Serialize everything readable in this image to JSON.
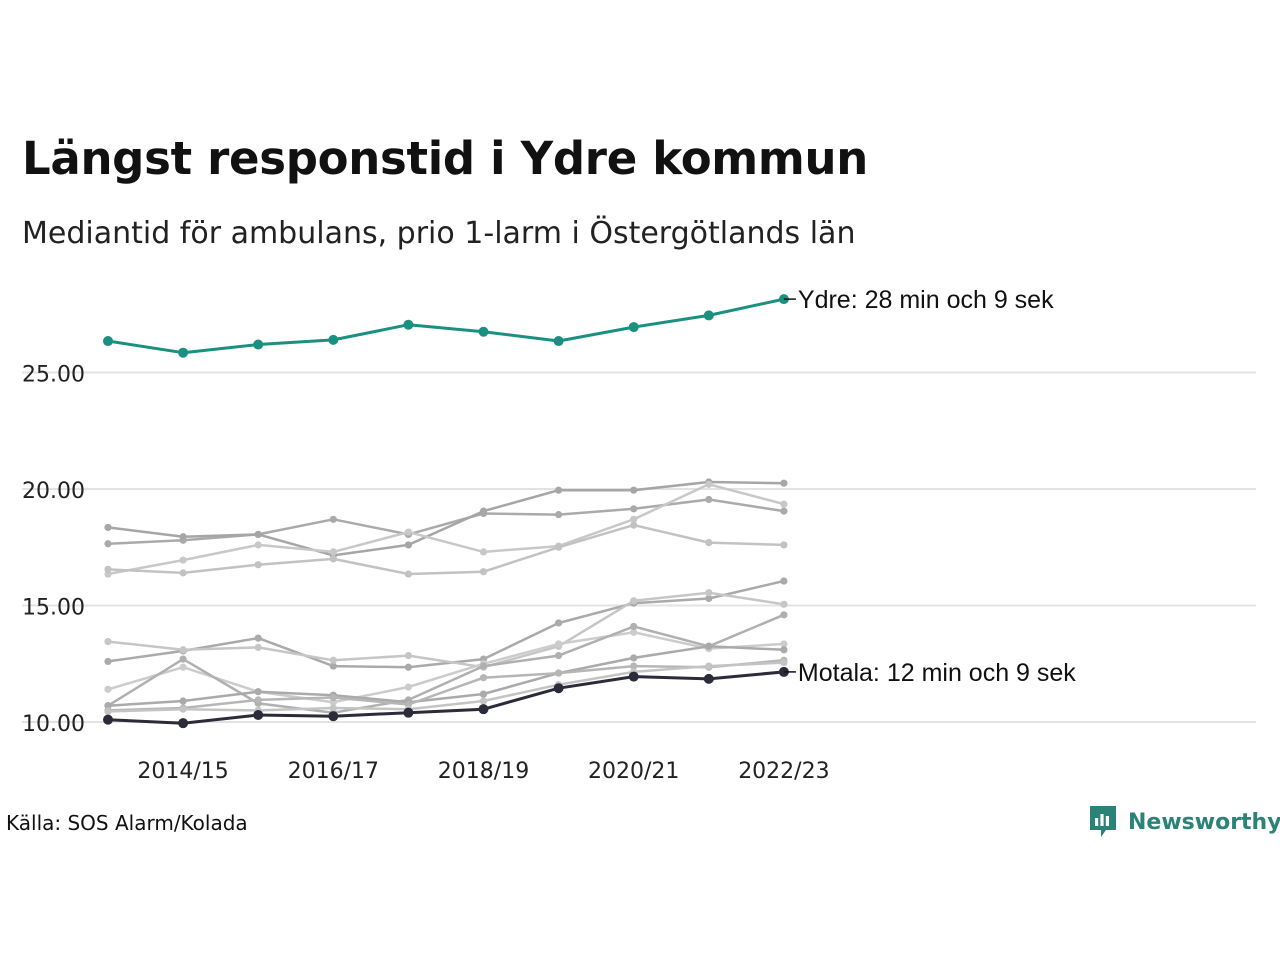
{
  "title": "Längst responstid i Ydre kommun",
  "subtitle": "Mediantid för ambulans, prio 1-larm i Östergötlands län",
  "source": "Källa: SOS Alarm/Kolada",
  "brand": {
    "name": "Newsworthy",
    "icon": "newsworthy-logo-icon",
    "color": "#2b8378"
  },
  "colors": {
    "highlight": "#1a9080",
    "focus": "#2b2b3a",
    "other": "#b4b4b4",
    "grid": "#e3e3e3"
  },
  "chart_data": {
    "type": "line",
    "x": [
      "2013/14",
      "2014/15",
      "2015/16",
      "2016/17",
      "2017/18",
      "2018/19",
      "2019/20",
      "2020/21",
      "2021/22",
      "2022/23"
    ],
    "x_tick_labels": [
      "2014/15",
      "2016/17",
      "2018/19",
      "2020/21",
      "2022/23"
    ],
    "y_ticks": [
      "10.00",
      "15.00",
      "20.00",
      "25.00"
    ],
    "ylim": [
      9.5,
      28.8
    ],
    "grid": "horizontal",
    "legend": "none",
    "series": [
      {
        "values": [
          17.65,
          17.8,
          18.05,
          18.7,
          18.05,
          18.95,
          18.9,
          19.15,
          19.55,
          19.05
        ],
        "role": "other",
        "shade": "#aaaaaa"
      },
      {
        "values": [
          18.35,
          17.95,
          18.05,
          17.15,
          17.6,
          19.05,
          19.95,
          19.95,
          20.3,
          20.25
        ],
        "role": "other",
        "shade": "#a6a6a6"
      },
      {
        "values": [
          16.35,
          16.95,
          17.6,
          17.3,
          18.15,
          17.3,
          17.55,
          18.7,
          20.2,
          19.35
        ],
        "role": "other",
        "shade": "#c8c8c8"
      },
      {
        "values": [
          16.55,
          16.4,
          16.75,
          17.0,
          16.35,
          16.45,
          17.5,
          18.45,
          17.7,
          17.6
        ],
        "role": "other",
        "shade": "#c2c2c2"
      },
      {
        "values": [
          12.6,
          13.05,
          13.6,
          12.4,
          12.35,
          12.7,
          14.25,
          15.1,
          15.3,
          16.05
        ],
        "role": "other",
        "shade": "#aaaaaa"
      },
      {
        "values": [
          13.45,
          13.1,
          13.2,
          12.65,
          12.85,
          12.35,
          13.25,
          15.2,
          15.55,
          15.05
        ],
        "role": "other",
        "shade": "#c6c6c6"
      },
      {
        "values": [
          11.4,
          12.35,
          11.3,
          10.85,
          11.5,
          12.5,
          13.35,
          13.85,
          13.15,
          13.35
        ],
        "role": "other",
        "shade": "#cccccc"
      },
      {
        "values": [
          10.7,
          12.7,
          10.8,
          10.4,
          10.95,
          12.4,
          12.85,
          14.1,
          13.25,
          14.6
        ],
        "role": "other",
        "shade": "#b0b0b0"
      },
      {
        "values": [
          10.7,
          10.9,
          11.3,
          11.15,
          10.85,
          11.2,
          12.1,
          12.75,
          13.25,
          13.1
        ],
        "role": "other",
        "shade": "#aaaaaa"
      },
      {
        "values": [
          10.5,
          10.6,
          10.95,
          11.05,
          10.75,
          11.9,
          12.1,
          12.4,
          12.35,
          12.65
        ],
        "role": "other",
        "shade": "#b6b6b6"
      },
      {
        "values": [
          10.45,
          10.55,
          10.5,
          10.6,
          10.55,
          10.9,
          11.6,
          12.15,
          12.4,
          12.55
        ],
        "role": "other",
        "shade": "#c4c4c4"
      },
      {
        "name": "Ydre",
        "values": [
          26.35,
          25.85,
          26.2,
          26.4,
          27.05,
          26.75,
          26.35,
          26.95,
          27.45,
          28.15
        ],
        "role": "highlight",
        "label": "Ydre: 28 min och 9 sek"
      },
      {
        "name": "Motala",
        "values": [
          10.1,
          9.95,
          10.3,
          10.25,
          10.4,
          10.55,
          11.45,
          11.95,
          11.85,
          12.15
        ],
        "role": "focus",
        "label": "Motala: 12 min och 9 sek"
      }
    ]
  }
}
